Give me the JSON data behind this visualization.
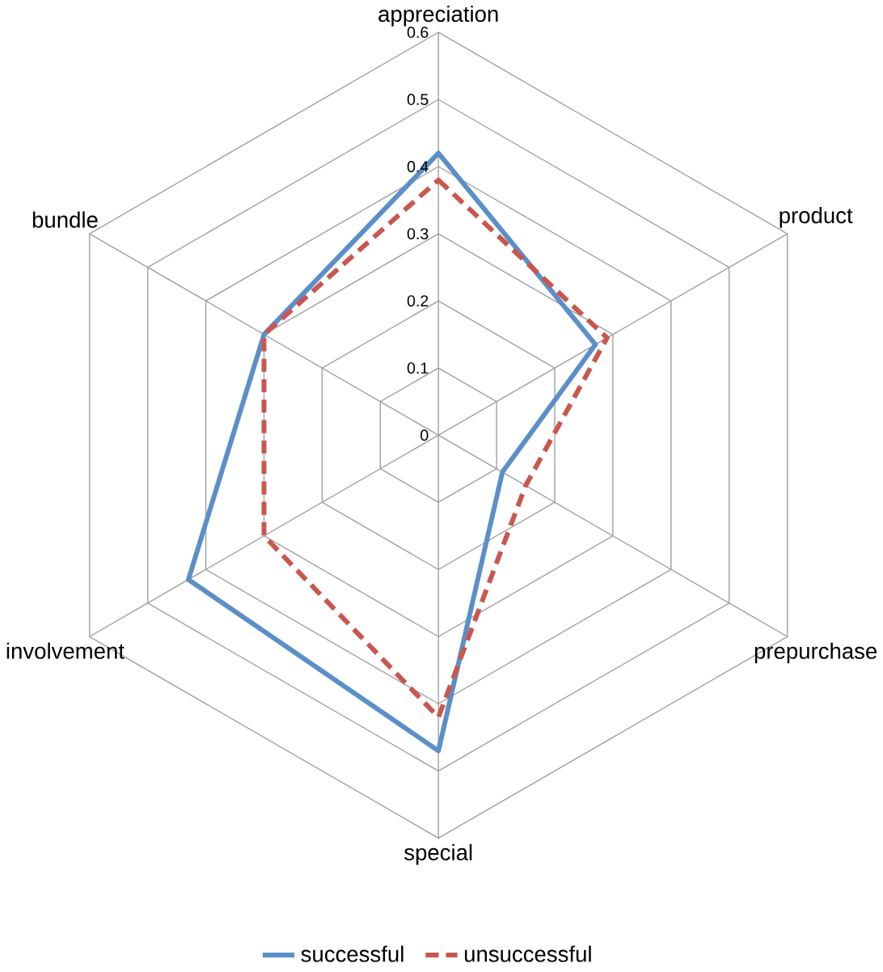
{
  "chart_data": {
    "type": "radar",
    "categories": [
      "appreciation",
      "product",
      "prepurchase",
      "special",
      "involvement",
      "bundle"
    ],
    "series": [
      {
        "name": "successful",
        "color": "#5b8fc9",
        "line_style": "solid",
        "values": [
          0.42,
          0.27,
          0.11,
          0.47,
          0.43,
          0.3
        ]
      },
      {
        "name": "unsuccessful",
        "color": "#c9574f",
        "line_style": "dashed",
        "values": [
          0.38,
          0.29,
          0.15,
          0.42,
          0.3,
          0.3
        ]
      }
    ],
    "ylim": [
      0,
      0.6
    ],
    "yticks": [
      0,
      0.1,
      0.2,
      0.3,
      0.4,
      0.5,
      0.6
    ],
    "grid": true,
    "legend": "bottom",
    "marker": "none"
  }
}
